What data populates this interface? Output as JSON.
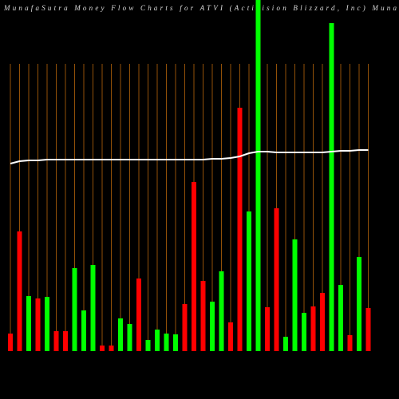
{
  "chart_data": {
    "type": "bar",
    "title": "MunafaSutra  Money Flow  Charts for ATVI                  (Activision                              Blizzard,  Inc) Muna",
    "categories": [
      null,
      null,
      null,
      null,
      null,
      null,
      null,
      null,
      null,
      null,
      null,
      null,
      null,
      null,
      null,
      null,
      null,
      null,
      null,
      null,
      null,
      null,
      null,
      null,
      null,
      null,
      null,
      null,
      null,
      null,
      null,
      null,
      null,
      null,
      null,
      null,
      null,
      null,
      null,
      null
    ],
    "values": [
      22,
      150,
      69,
      66,
      68,
      25,
      25,
      104,
      51,
      108,
      7,
      7,
      41,
      34,
      91,
      14,
      27,
      22,
      21,
      59,
      212,
      88,
      62,
      100,
      36,
      305,
      175,
      460,
      55,
      179,
      18,
      140,
      48,
      56,
      73,
      411,
      83,
      20,
      118,
      54
    ],
    "colors": [
      "#ff0000",
      "#ff0000",
      "#00ff00",
      "#ff0000",
      "#00ff00",
      "#ff0000",
      "#ff0000",
      "#00ff00",
      "#00ff00",
      "#00ff00",
      "#ff0000",
      "#ff0000",
      "#00ff00",
      "#00ff00",
      "#ff0000",
      "#00ff00",
      "#00ff00",
      "#00ff00",
      "#00ff00",
      "#ff0000",
      "#ff0000",
      "#ff0000",
      "#00ff00",
      "#00ff00",
      "#ff0000",
      "#ff0000",
      "#00ff00",
      "#00ff00",
      "#ff0000",
      "#ff0000",
      "#00ff00",
      "#00ff00",
      "#00ff00",
      "#ff0000",
      "#ff0000",
      "#00ff00",
      "#00ff00",
      "#ff0000",
      "#00ff00",
      "#ff0000"
    ],
    "line": {
      "color": "#ffffff",
      "values": [
        235,
        238,
        239,
        239,
        240,
        240,
        240,
        240,
        240,
        240,
        240,
        240,
        240,
        240,
        240,
        240,
        240,
        240,
        240,
        240,
        240,
        240,
        241,
        241,
        242,
        244,
        248,
        250,
        250,
        249,
        249,
        249,
        249,
        249,
        249,
        250,
        251,
        251,
        252,
        252
      ]
    },
    "ylim": [
      0,
      440
    ],
    "grid_color": "#b8660b"
  }
}
